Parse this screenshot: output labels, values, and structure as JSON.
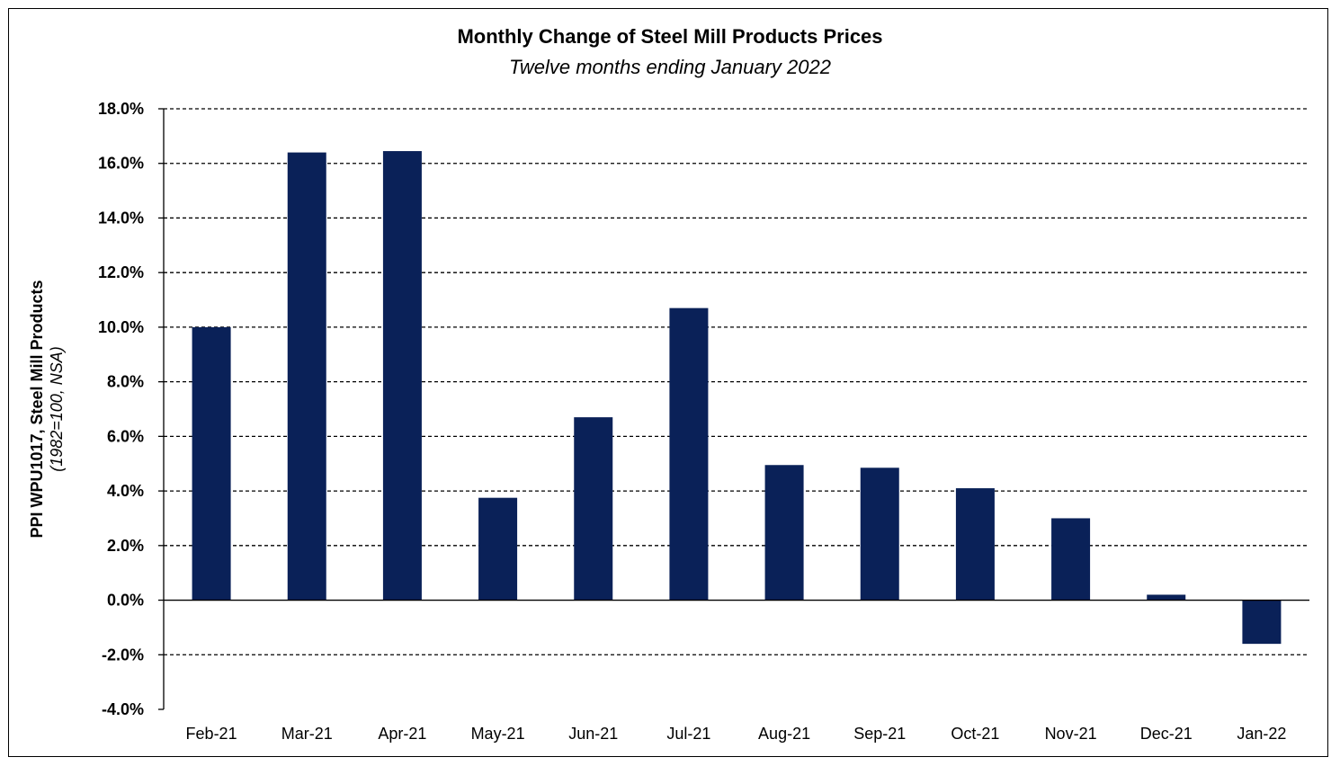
{
  "chart_data": {
    "type": "bar",
    "title": "Monthly Change of Steel Mill Products Prices",
    "subtitle": "Twelve months ending January 2022",
    "ylabel": "PPI WPU1017, Steel Mill Products",
    "ylabel_sub": "(1982=100, NSA)",
    "xlabel": "",
    "categories": [
      "Feb-21",
      "Mar-21",
      "Apr-21",
      "May-21",
      "Jun-21",
      "Jul-21",
      "Aug-21",
      "Sep-21",
      "Oct-21",
      "Nov-21",
      "Dec-21",
      "Jan-22"
    ],
    "values": [
      10.0,
      16.4,
      16.45,
      3.75,
      6.7,
      10.7,
      4.95,
      4.85,
      4.1,
      3.0,
      0.2,
      -1.6
    ],
    "ylim": [
      -4.0,
      18.0
    ],
    "yticks": [
      "-4.0%",
      "-2.0%",
      "0.0%",
      "2.0%",
      "4.0%",
      "6.0%",
      "8.0%",
      "10.0%",
      "12.0%",
      "14.0%",
      "16.0%",
      "18.0%"
    ],
    "grid": "dashed horizontal",
    "bar_color": "#0a2158"
  }
}
